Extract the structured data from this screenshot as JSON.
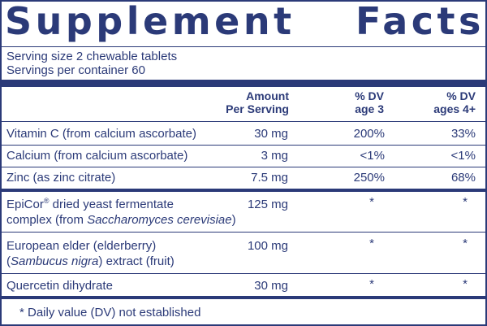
{
  "panel": {
    "title_word1": "Supplement",
    "title_word2": "Facts",
    "serving_size": "Serving size  2 chewable tablets",
    "servings_per_container": "Servings per container  60"
  },
  "columns": {
    "amount_line1": "Amount",
    "amount_line2": "Per Serving",
    "dv3_line1": "% DV",
    "dv3_line2": "age 3",
    "dv4_line1": "% DV",
    "dv4_line2": "ages 4+"
  },
  "rows": [
    {
      "name": "Vitamin C (from calcium ascorbate)",
      "amount": "30 mg",
      "dv3": "200%",
      "dv4": "33%"
    },
    {
      "name": "Calcium (from calcium ascorbate)",
      "amount": "3 mg",
      "dv3": "<1%",
      "dv4": "<1%"
    },
    {
      "name": "Zinc (as zinc citrate)",
      "amount": "7.5 mg",
      "dv3": "250%",
      "dv4": "68%"
    },
    {
      "name_part1": "EpiCor",
      "name_sup": "®",
      "name_part2": " dried yeast fermentate",
      "name_line2_pre": "complex (from ",
      "name_line2_italic": "Saccharomyces cerevisiae",
      "name_line2_post": ")",
      "amount": "125 mg",
      "dv3": "*",
      "dv4": "*"
    },
    {
      "name_line1": "European elder (elderberry)",
      "name_line2_pre": "(",
      "name_line2_italic": "Sambucus nigra",
      "name_line2_post": ") extract (fruit)",
      "amount": "100 mg",
      "dv3": "*",
      "dv4": "*"
    },
    {
      "name": "Quercetin dihydrate",
      "amount": "30 mg",
      "dv3": "*",
      "dv4": "*"
    }
  ],
  "footnote": "* Daily value (DV) not established"
}
